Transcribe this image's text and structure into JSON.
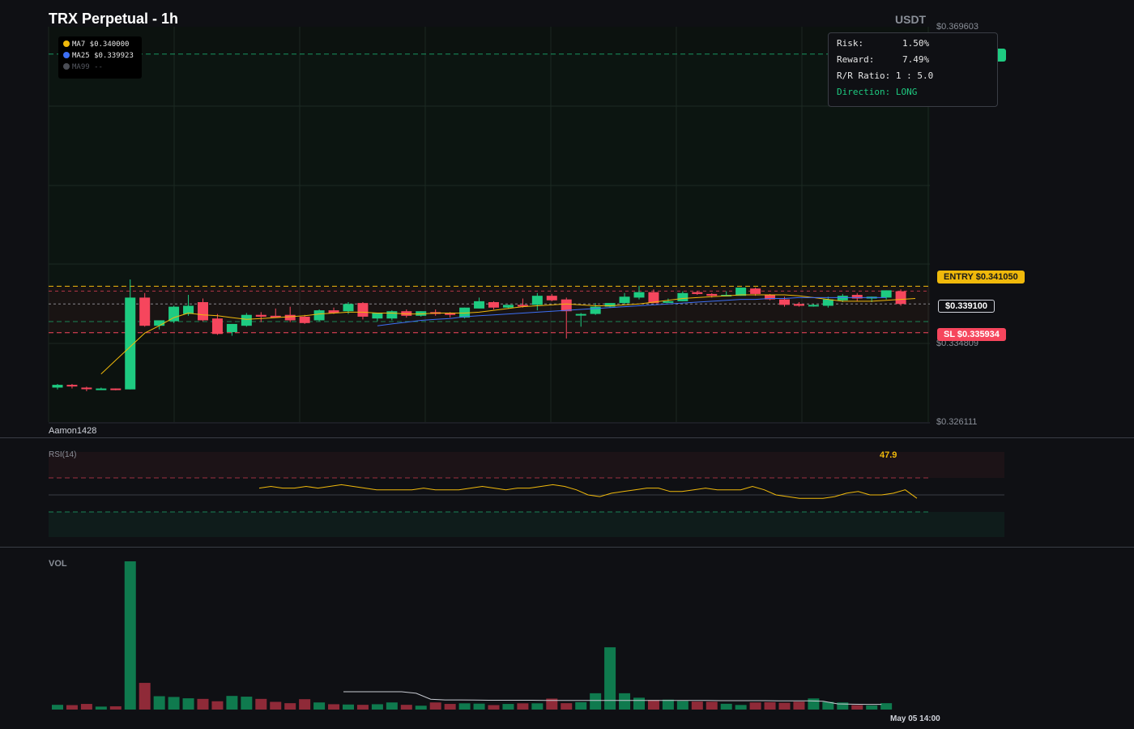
{
  "header": {
    "title": "TRX Perpetual - 1h",
    "unit": "USDT"
  },
  "moving_averages": [
    {
      "label": "MA7 $0.340000",
      "color": "#f0b90b"
    },
    {
      "label": "MA25 $0.339923",
      "color": "#3d6ff5"
    },
    {
      "label": "MA99 --",
      "color": "#4a4d55"
    }
  ],
  "risk_reward": {
    "risk_label": "Risk:",
    "risk_value": "1.50%",
    "reward_label": "Reward:",
    "reward_value": "7.49%",
    "ratio_label": "R/R Ratio:",
    "ratio_value": "1 : 5.0",
    "direction_label": "Direction:",
    "direction_value": "LONG"
  },
  "price_axis": {
    "top": "$0.369603",
    "mid": "$0.334809",
    "bottom": "$0.326111"
  },
  "tags": {
    "entry": "ENTRY $0.341050",
    "current": "$0.339100",
    "stop_loss": "SL $0.335934"
  },
  "watermark": "Aamon1428",
  "rsi": {
    "label": "RSI(14)",
    "value": "47.9"
  },
  "volume": {
    "label": "VOL"
  },
  "time_axis": {
    "last": "May 05 14:00"
  },
  "colors": {
    "up": "#1ecb81",
    "down": "#f6465d",
    "ma7": "#f0b90b",
    "ma25": "#3d6ff5",
    "entry": "#f0b90b",
    "take_profit": "#1ecb81",
    "stop_loss": "#f6465d"
  },
  "chart_data": {
    "type": "candlestick",
    "y_range": [
      0.326111,
      0.369603
    ],
    "levels": {
      "entry": 0.34105,
      "stop_loss": 0.335934,
      "current": 0.3391,
      "take_profit": 0.3666
    },
    "candles": [
      [
        0.3299,
        0.3303,
        0.3302,
        0.3297
      ],
      [
        0.3302,
        0.3303,
        0.3301,
        0.3298
      ],
      [
        0.3299,
        0.33,
        0.3298,
        0.3295
      ],
      [
        0.3298,
        0.3299,
        0.3298,
        0.3297
      ],
      [
        0.3298,
        0.3298,
        0.3297,
        0.3296
      ],
      [
        0.3297,
        0.3418,
        0.3398,
        0.3297
      ],
      [
        0.3398,
        0.3403,
        0.3367,
        0.3366
      ],
      [
        0.3367,
        0.3371,
        0.3373,
        0.3363
      ],
      [
        0.3372,
        0.3389,
        0.3388,
        0.337
      ],
      [
        0.338,
        0.3401,
        0.3389,
        0.3378
      ],
      [
        0.3393,
        0.3397,
        0.3373,
        0.3372
      ],
      [
        0.3375,
        0.338,
        0.3358,
        0.3357
      ],
      [
        0.336,
        0.3369,
        0.3369,
        0.3356
      ],
      [
        0.3367,
        0.3381,
        0.3379,
        0.3366
      ],
      [
        0.3379,
        0.3382,
        0.3377,
        0.3371
      ],
      [
        0.3378,
        0.3386,
        0.3377,
        0.3376
      ],
      [
        0.3379,
        0.3388,
        0.3373,
        0.3371
      ],
      [
        0.3377,
        0.3379,
        0.337,
        0.3369
      ],
      [
        0.3373,
        0.3385,
        0.3384,
        0.3372
      ],
      [
        0.3384,
        0.3387,
        0.3381,
        0.338
      ],
      [
        0.3383,
        0.3393,
        0.3391,
        0.338
      ],
      [
        0.3392,
        0.3393,
        0.3377,
        0.3374
      ],
      [
        0.3375,
        0.3378,
        0.3381,
        0.3372
      ],
      [
        0.3375,
        0.3384,
        0.3383,
        0.3373
      ],
      [
        0.3383,
        0.3385,
        0.3378,
        0.3376
      ],
      [
        0.3378,
        0.3383,
        0.3383,
        0.3377
      ],
      [
        0.3382,
        0.3385,
        0.338,
        0.3378
      ],
      [
        0.3381,
        0.3382,
        0.3379,
        0.3376
      ],
      [
        0.3376,
        0.3387,
        0.3387,
        0.3375
      ],
      [
        0.3386,
        0.3398,
        0.3394,
        0.3386
      ],
      [
        0.3393,
        0.3394,
        0.3387,
        0.3385
      ],
      [
        0.3387,
        0.339,
        0.339,
        0.3386
      ],
      [
        0.339,
        0.3397,
        0.3389,
        0.3387
      ],
      [
        0.339,
        0.3403,
        0.34,
        0.3384
      ],
      [
        0.34,
        0.3402,
        0.3395,
        0.3394
      ],
      [
        0.3396,
        0.3398,
        0.3383,
        0.3353
      ],
      [
        0.338,
        0.3381,
        0.338,
        0.3366
      ],
      [
        0.338,
        0.3392,
        0.3388,
        0.3379
      ],
      [
        0.3388,
        0.339,
        0.3392,
        0.3387
      ],
      [
        0.3392,
        0.3403,
        0.3399,
        0.3391
      ],
      [
        0.3398,
        0.3411,
        0.3404,
        0.3396
      ],
      [
        0.3404,
        0.3407,
        0.3392,
        0.3392
      ],
      [
        0.3393,
        0.3397,
        0.3394,
        0.3393
      ],
      [
        0.3394,
        0.3405,
        0.3403,
        0.3394
      ],
      [
        0.3404,
        0.3405,
        0.3402,
        0.3401
      ],
      [
        0.3402,
        0.3403,
        0.34,
        0.3398
      ],
      [
        0.3401,
        0.3405,
        0.3401,
        0.34
      ],
      [
        0.34,
        0.3409,
        0.3409,
        0.34
      ],
      [
        0.3408,
        0.3409,
        0.3402,
        0.34
      ],
      [
        0.3401,
        0.3402,
        0.3396,
        0.3395
      ],
      [
        0.3396,
        0.3399,
        0.339,
        0.3388
      ],
      [
        0.3391,
        0.3393,
        0.3389,
        0.3388
      ],
      [
        0.3389,
        0.3391,
        0.339,
        0.3388
      ],
      [
        0.3389,
        0.3399,
        0.3396,
        0.3387
      ],
      [
        0.3395,
        0.3402,
        0.34,
        0.3393
      ],
      [
        0.3401,
        0.3403,
        0.3397,
        0.3394
      ],
      [
        0.3397,
        0.3399,
        0.3399,
        0.3393
      ],
      [
        0.3398,
        0.3406,
        0.3406,
        0.3396
      ],
      [
        0.3405,
        0.3407,
        0.3391,
        0.3389
      ]
    ],
    "ma7": [
      0.3314,
      0.3329,
      0.3344,
      0.3359,
      0.3367,
      0.3376,
      0.3381,
      0.3379,
      0.3378,
      0.3376,
      0.3374,
      0.3375,
      0.3376,
      0.3377,
      0.3378,
      0.338,
      0.3381,
      0.3382,
      0.3382,
      0.3381,
      0.3381,
      0.338,
      0.338,
      0.3381,
      0.3381,
      0.3381,
      0.3382,
      0.3384,
      0.3386,
      0.3388,
      0.3389,
      0.339,
      0.3391,
      0.339,
      0.3389,
      0.3389,
      0.339,
      0.3391,
      0.3393,
      0.3395,
      0.3397,
      0.3398,
      0.3399,
      0.34,
      0.3401,
      0.3401,
      0.3401,
      0.3401,
      0.34,
      0.3398,
      0.3396,
      0.3394,
      0.3394,
      0.3394,
      0.3395,
      0.3396,
      0.3397
    ],
    "ma25": [
      0.3367,
      0.3369,
      0.3371,
      0.3373,
      0.3374,
      0.3375,
      0.3377,
      0.3378,
      0.3379,
      0.338,
      0.3381,
      0.3382,
      0.3383,
      0.3384,
      0.3385,
      0.3386,
      0.3387,
      0.3388,
      0.3389,
      0.339,
      0.3391,
      0.3392,
      0.3393,
      0.3394,
      0.3395,
      0.3396,
      0.3396,
      0.3397,
      0.3397,
      0.3398,
      0.3398,
      0.3398,
      0.3398,
      0.3398,
      0.3398,
      0.3398
    ],
    "rsi": [
      54,
      55,
      54,
      54,
      55,
      54,
      55,
      56,
      55,
      54,
      53,
      53,
      53,
      53,
      54,
      53,
      53,
      53,
      54,
      55,
      54,
      53,
      54,
      54,
      55,
      56,
      55,
      53,
      50,
      49,
      51,
      52,
      53,
      54,
      54,
      52,
      52,
      53,
      54,
      53,
      53,
      53,
      55,
      53,
      50,
      49,
      48,
      48,
      48,
      49,
      51,
      52,
      50,
      50,
      51,
      53,
      48
    ],
    "volume": [
      3.2,
      3.0,
      3.8,
      2.0,
      2.2,
      100,
      18,
      9,
      8.5,
      7.6,
      7.2,
      5.6,
      9.2,
      8.7,
      7.2,
      5.2,
      4.3,
      7.0,
      4.8,
      3.6,
      3.4,
      3.2,
      3.6,
      4.8,
      3.2,
      2.6,
      4.8,
      3.8,
      4.2,
      4.0,
      3.0,
      3.8,
      4.2,
      4.2,
      7.4,
      4.3,
      5.0,
      11,
      42,
      11,
      8,
      6.5,
      6.7,
      5.8,
      5.4,
      5.3,
      3.9,
      3.1,
      4.8,
      5.0,
      4.6,
      5.3,
      7.5,
      5.2,
      4.8,
      3.0,
      2.8,
      4.3
    ],
    "volume_avg": [
      null,
      null,
      null,
      null,
      null,
      null,
      null,
      null,
      null,
      null,
      null,
      null,
      null,
      null,
      null,
      null,
      null,
      null,
      null,
      null,
      12,
      12,
      12,
      12,
      12,
      11,
      7,
      6.5,
      6.5,
      6.4,
      6.3,
      6.3,
      6.3,
      6.3,
      6.2,
      6.2,
      6.2,
      6.2,
      6.2,
      6.1,
      6.2,
      6.2,
      6.1,
      6.1,
      6.1,
      6.1,
      6.0,
      6.0,
      6.0,
      6.0,
      5.9,
      5.9,
      5.9,
      5.6,
      3.8,
      3.6,
      3.5,
      3.5
    ]
  }
}
